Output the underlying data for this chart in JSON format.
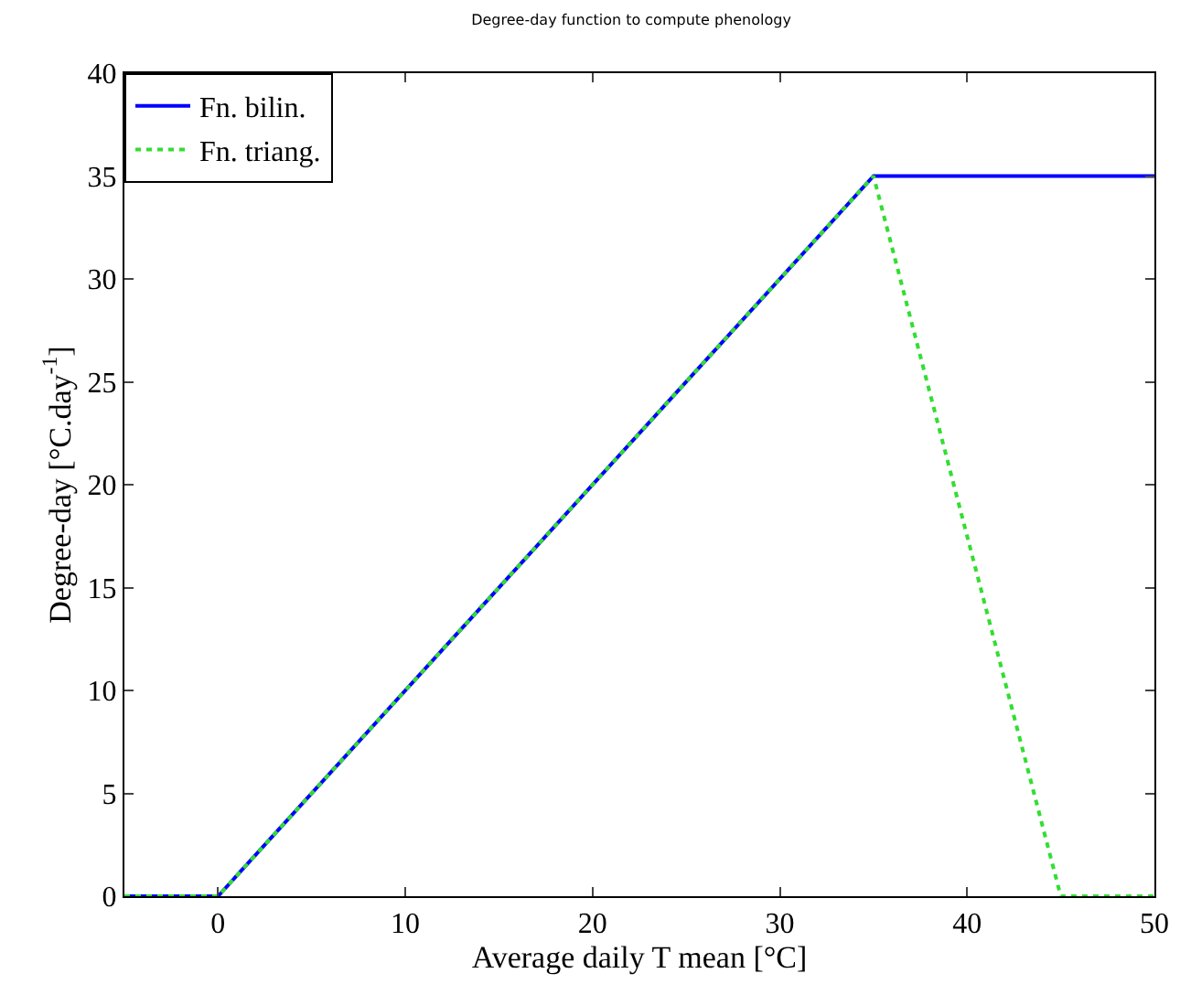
{
  "chart_data": {
    "type": "line",
    "title": "Degree-day function to compute phenology",
    "xlabel": "Average daily T mean [°C]",
    "ylabel": "Degree-day [°C.day$^{-1}$]",
    "series": [
      {
        "name": "Fn. bilin.",
        "color": "#0000ff",
        "line_style": "solid",
        "x": [
          -5,
          0,
          35,
          50
        ],
        "values": [
          0,
          0,
          35,
          35
        ]
      },
      {
        "name": "Fn. triang.",
        "color": "#33dd33",
        "line_style": "dotted",
        "x": [
          -5,
          0,
          35,
          45,
          50
        ],
        "values": [
          0,
          0,
          35,
          0,
          0
        ]
      }
    ],
    "xlim": [
      -5,
      50
    ],
    "xticks": [
      0,
      10,
      20,
      30,
      40,
      50
    ],
    "ylim": [
      0,
      40
    ],
    "yticks": [
      0,
      5,
      10,
      15,
      20,
      25,
      30,
      35,
      40
    ],
    "legend": "top left",
    "marker": "none"
  }
}
